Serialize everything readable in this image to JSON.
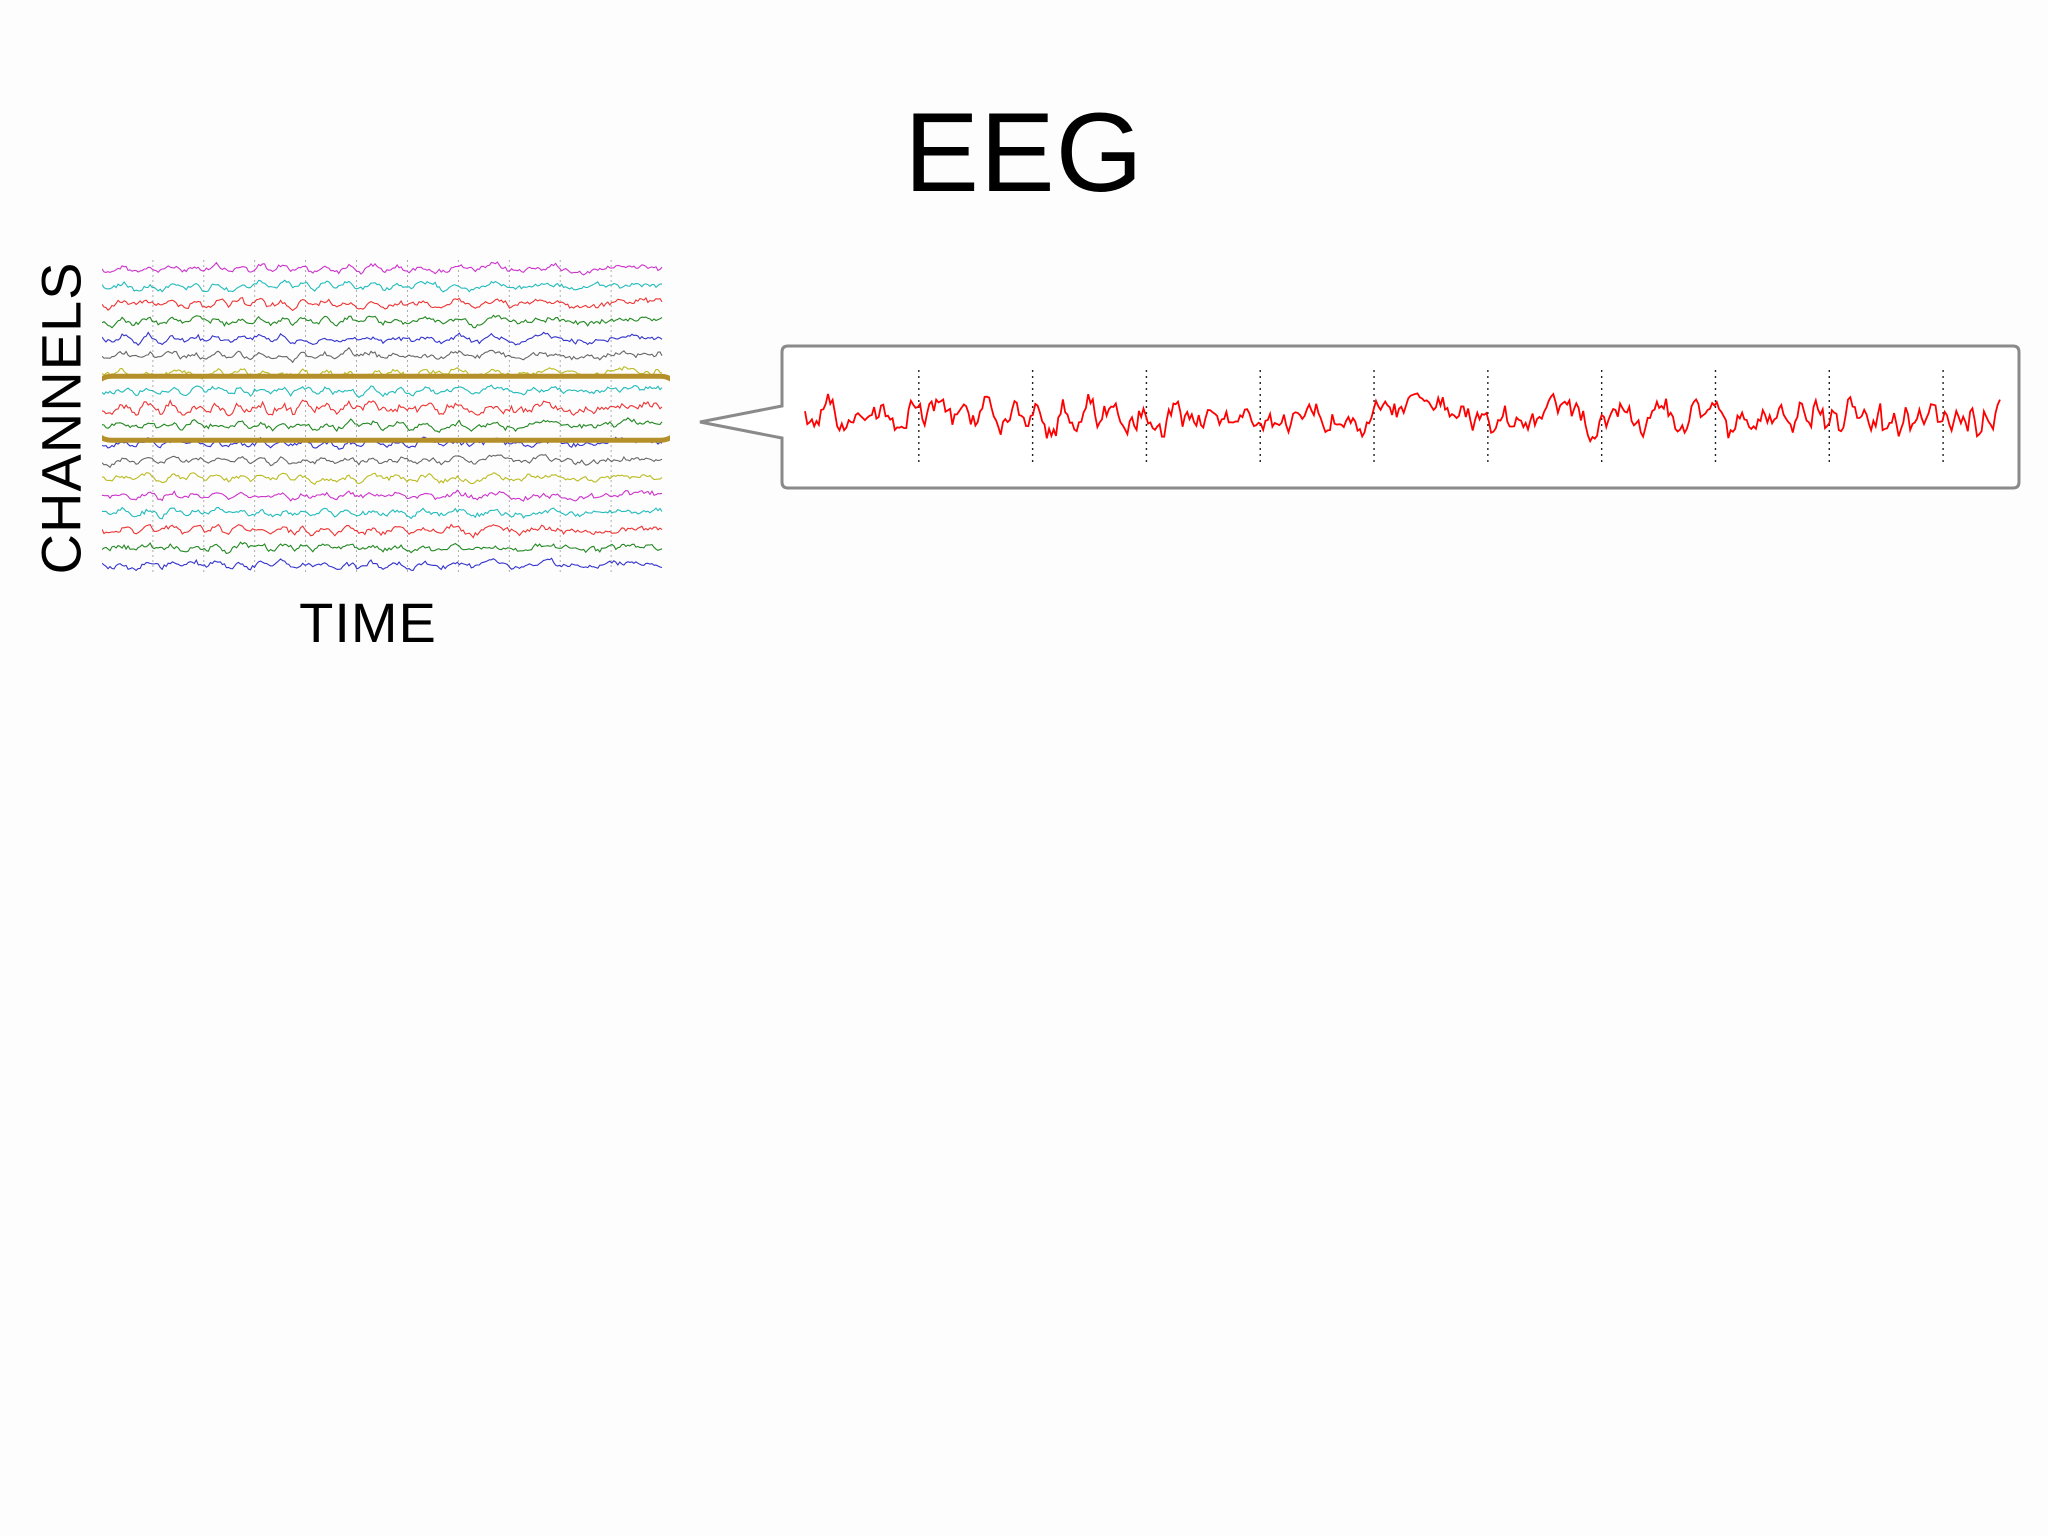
{
  "slide": {
    "title": "EEG",
    "y_axis_label": "CHANNELS",
    "x_axis_label": "TIME"
  },
  "colors": {
    "highlight_outline": "#b5902a",
    "callout_border": "#8a8a8a",
    "selected_channel": "#ff0000",
    "channel_palette": [
      "#cc33cc",
      "#22bbbb",
      "#ee3333",
      "#228822",
      "#3333cc",
      "#666666",
      "#bbbb22"
    ]
  },
  "channel_colors": [
    "#cc33cc",
    "#22bbbb",
    "#ee3333",
    "#228822",
    "#3333cc",
    "#666666",
    "#bbbb22",
    "#22bbbb",
    "#ee3333",
    "#228822",
    "#3333cc",
    "#666666",
    "#bbbb22",
    "#cc33cc",
    "#22bbbb",
    "#ee3333",
    "#228822",
    "#3333cc"
  ],
  "selected_channel_index": 8
}
